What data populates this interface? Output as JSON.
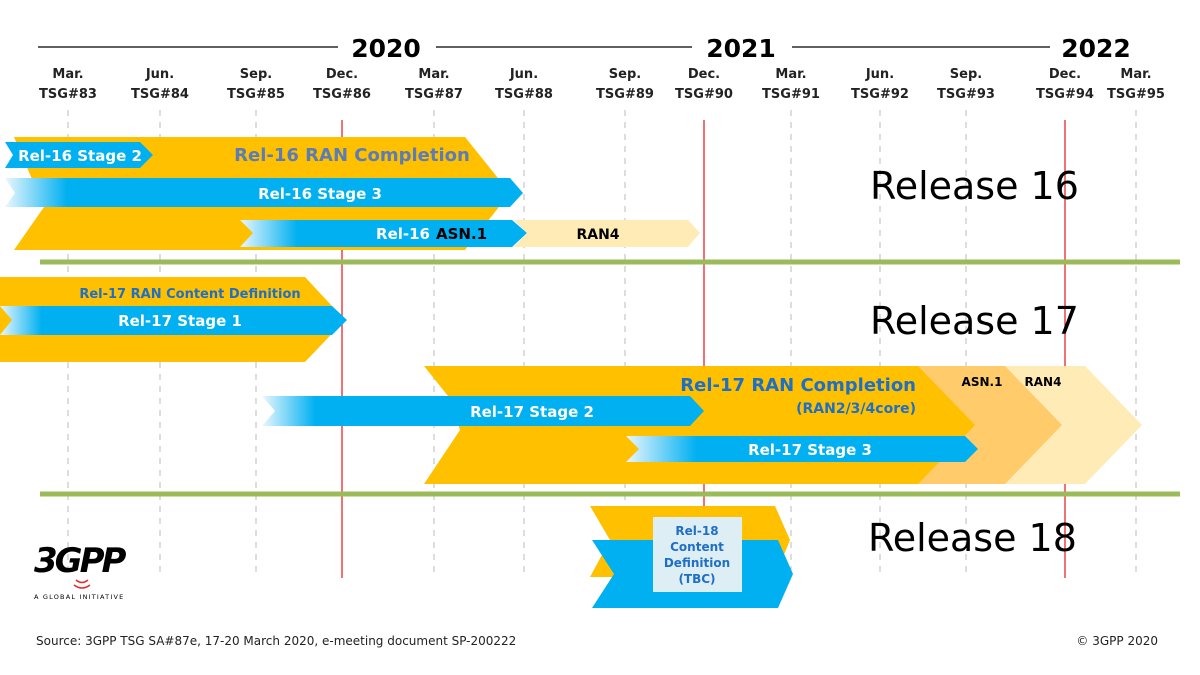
{
  "years": [
    "2020",
    "2021",
    "2022"
  ],
  "meetings": [
    {
      "month": "Mar.",
      "tsg": "TSG#83"
    },
    {
      "month": "Jun.",
      "tsg": "TSG#84"
    },
    {
      "month": "Sep.",
      "tsg": "TSG#85"
    },
    {
      "month": "Dec.",
      "tsg": "TSG#86"
    },
    {
      "month": "Mar.",
      "tsg": "TSG#87"
    },
    {
      "month": "Jun.",
      "tsg": "TSG#88"
    },
    {
      "month": "Sep.",
      "tsg": "TSG#89"
    },
    {
      "month": "Dec.",
      "tsg": "TSG#90"
    },
    {
      "month": "Mar.",
      "tsg": "TSG#91"
    },
    {
      "month": "Jun.",
      "tsg": "TSG#92"
    },
    {
      "month": "Sep.",
      "tsg": "TSG#93"
    },
    {
      "month": "Dec.",
      "tsg": "TSG#94"
    },
    {
      "month": "Mar.",
      "tsg": "TSG#95"
    }
  ],
  "rel16": {
    "title": "Release 16",
    "ran_completion": "Rel-16 RAN Completion",
    "stage2": "Rel-16 Stage 2",
    "stage3": "Rel-16 Stage 3",
    "asn1_prefix": "Rel-16",
    "asn1": "ASN.1",
    "ran4": "RAN4"
  },
  "rel17": {
    "title": "Release 17",
    "content_definition": "Rel-17 RAN Content Definition",
    "stage1": "Rel-17 Stage 1",
    "ran_completion": "Rel-17 RAN Completion",
    "ran_completion_sub": "(RAN2/3/4core)",
    "stage2": "Rel-17 Stage 2",
    "stage3": "Rel-17 Stage 3",
    "asn1": "ASN.1",
    "ran4": "RAN4"
  },
  "rel18": {
    "title": "Release 18",
    "box_lines": [
      "Rel-18",
      "Content",
      "Definition",
      "(TBC)"
    ]
  },
  "logo": {
    "text": "3GPP",
    "tagline": "A GLOBAL INITIATIVE"
  },
  "footer": {
    "source": "Source: 3GPP TSG SA#87e, 17-20 March 2020, e-meeting document SP-200222",
    "copyright": "© 3GPP 2020"
  },
  "colors": {
    "yellow": "#FFC000",
    "blue": "#00B0F0",
    "asn1_orange": "#FFCB6B",
    "ran4_light": "#FFEBB5",
    "green_divider": "#9BBB59",
    "year_marker_red": "#E8272B",
    "text_blue": "#1F6FC5"
  }
}
